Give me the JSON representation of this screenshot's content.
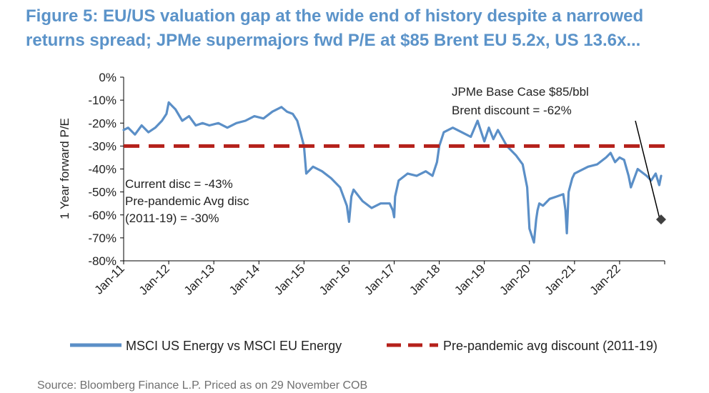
{
  "title": "Figure 5: EU/US valuation gap at the wide end of history despite a narrowed returns spread; JPMe supermajors fwd P/E at $85 Brent EU 5.2x, US 13.6x...",
  "source": "Source: Bloomberg Finance L.P. Priced as on 29 November COB",
  "chart_data": {
    "type": "line",
    "title": "Figure 5: EU/US valuation gap at the wide end of history despite a narrowed returns spread; JPMe supermajors fwd P/E at $85 Brent EU 5.2x, US 13.6x...",
    "ylabel": "1 Year forward P/E",
    "xlabel": "",
    "ylim": [
      -80,
      0
    ],
    "yticks": [
      0,
      -10,
      -20,
      -30,
      -40,
      -50,
      -60,
      -70,
      -80
    ],
    "ytick_labels": [
      "0%",
      "-10%",
      "-20%",
      "-30%",
      "-40%",
      "-50%",
      "-60%",
      "-70%",
      "-80%"
    ],
    "xlim": [
      2011.0,
      2023.0
    ],
    "xtick_labels": [
      "Jan-11",
      "Jan-12",
      "Jan-13",
      "Jan-14",
      "Jan-15",
      "Jan-16",
      "Jan-17",
      "Jan-18",
      "Jan-19",
      "Jan-20",
      "Jan-21",
      "Jan-22"
    ],
    "grid": false,
    "legend_position": "bottom",
    "colors": {
      "main": "#5b8fc7",
      "avg": "#b5211b",
      "estimate": "#404040",
      "title": "#5b93c9"
    },
    "series": [
      {
        "name": "MSCI US Energy vs MSCI EU Energy",
        "style": "solid",
        "x": [
          2011.0,
          2011.1,
          2011.25,
          2011.4,
          2011.55,
          2011.7,
          2011.85,
          2011.95,
          2012.0,
          2012.05,
          2012.15,
          2012.3,
          2012.45,
          2012.6,
          2012.75,
          2012.9,
          2013.1,
          2013.3,
          2013.5,
          2013.7,
          2013.9,
          2014.1,
          2014.3,
          2014.5,
          2014.62,
          2014.75,
          2014.85,
          2014.92,
          2015.0,
          2015.05,
          2015.2,
          2015.4,
          2015.6,
          2015.8,
          2015.95,
          2016.0,
          2016.05,
          2016.1,
          2016.3,
          2016.5,
          2016.7,
          2016.9,
          2016.97,
          2017.0,
          2017.02,
          2017.1,
          2017.3,
          2017.5,
          2017.7,
          2017.85,
          2017.95,
          2018.0,
          2018.1,
          2018.3,
          2018.5,
          2018.7,
          2018.85,
          2018.95,
          2019.0,
          2019.1,
          2019.2,
          2019.3,
          2019.5,
          2019.7,
          2019.85,
          2019.95,
          2020.0,
          2020.1,
          2020.15,
          2020.18,
          2020.22,
          2020.3,
          2020.45,
          2020.6,
          2020.75,
          2020.8,
          2020.83,
          2020.87,
          2020.95,
          2021.0,
          2021.1,
          2021.3,
          2021.5,
          2021.7,
          2021.8,
          2021.9,
          2022.0,
          2022.1,
          2022.2,
          2022.25,
          2022.4,
          2022.6,
          2022.7,
          2022.8,
          2022.88,
          2022.92
        ],
        "values": [
          -23,
          -22,
          -25,
          -21,
          -24,
          -22,
          -19,
          -16,
          -11,
          -12,
          -14,
          -19,
          -17,
          -21,
          -20,
          -21,
          -20,
          -22,
          -20,
          -19,
          -17,
          -18,
          -15,
          -13,
          -15,
          -16,
          -19,
          -24,
          -30,
          -42,
          -39,
          -41,
          -44,
          -48,
          -56,
          -63,
          -52,
          -49,
          -54,
          -57,
          -55,
          -55,
          -58,
          -61,
          -52,
          -45,
          -42,
          -43,
          -41,
          -43,
          -37,
          -30,
          -24,
          -22,
          -24,
          -26,
          -19,
          -25,
          -28,
          -22,
          -27,
          -23,
          -30,
          -34,
          -38,
          -48,
          -66,
          -72,
          -62,
          -58,
          -55,
          -56,
          -53,
          -52,
          -51,
          -58,
          -68,
          -50,
          -44,
          -42,
          -41,
          -39,
          -38,
          -35,
          -33,
          -37,
          -35,
          -36,
          -43,
          -48,
          -40,
          -43,
          -45,
          -42,
          -47,
          -43
        ]
      },
      {
        "name": "Pre-pandemic avg discount (2011-19)",
        "style": "dashed",
        "x": [
          2011.0,
          2023.0
        ],
        "values": [
          -30,
          -30
        ]
      }
    ],
    "estimate_point": {
      "x": 2022.92,
      "value": -62
    },
    "estimate_line": {
      "x": [
        2022.35,
        2022.88
      ],
      "values": [
        -19,
        -61
      ]
    },
    "annotations": [
      {
        "lines": [
          "JPMe Base Case $85/bbl",
          "Brent discount = -62%"
        ]
      },
      {
        "lines": [
          "Current disc = -43%",
          "Pre-pandemic Avg disc",
          "(2011-19) = -30%"
        ]
      }
    ]
  }
}
